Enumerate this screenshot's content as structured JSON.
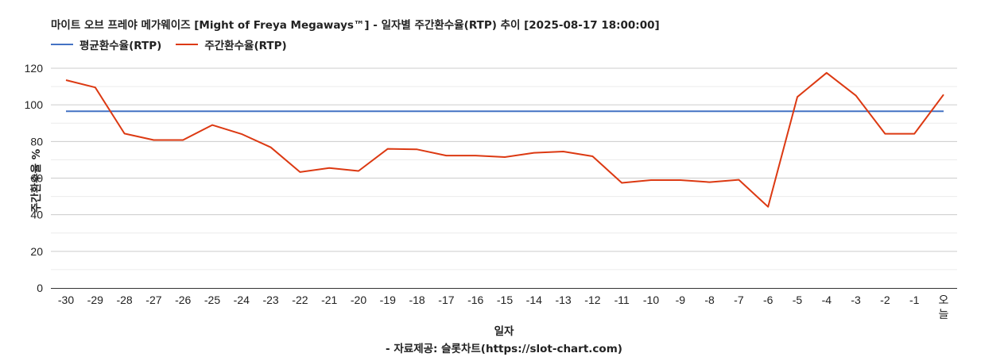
{
  "chart_data": {
    "type": "line",
    "title": "마이트 오브 프레야 메가웨이즈 [Might of Freya Megaways™] - 일자별 주간환수율(RTP) 추이 [2025-08-17 18:00:00]",
    "xlabel": "일자",
    "ylabel": "주간환수율 %",
    "source_note": "- 자료제공: 슬롯차트(https://slot-chart.com)",
    "categories": [
      "-30",
      "-29",
      "-28",
      "-27",
      "-26",
      "-25",
      "-24",
      "-23",
      "-22",
      "-21",
      "-20",
      "-19",
      "-18",
      "-17",
      "-16",
      "-15",
      "-14",
      "-13",
      "-12",
      "-11",
      "-10",
      "-9",
      "-8",
      "-7",
      "-6",
      "-5",
      "-4",
      "-3",
      "-2",
      "-1",
      "오늘"
    ],
    "y_ticks": [
      0,
      20,
      40,
      60,
      80,
      100,
      120
    ],
    "ylim": [
      0,
      120
    ],
    "grid": true,
    "legend_position": "top-left",
    "series": [
      {
        "name": "평균환수율(RTP)",
        "color": "#4472C4",
        "values": [
          96.5,
          96.5,
          96.5,
          96.5,
          96.5,
          96.5,
          96.5,
          96.5,
          96.5,
          96.5,
          96.5,
          96.5,
          96.5,
          96.5,
          96.5,
          96.5,
          96.5,
          96.5,
          96.5,
          96.5,
          96.5,
          96.5,
          96.5,
          96.5,
          96.5,
          96.5,
          96.5,
          96.5,
          96.5,
          96.5,
          96.5
        ]
      },
      {
        "name": "주간환수율(RTP)",
        "color": "#DC3912",
        "values": [
          113.5,
          109.5,
          84.3,
          80.8,
          80.8,
          89.0,
          84.1,
          76.8,
          63.3,
          65.5,
          63.9,
          76.0,
          75.7,
          72.3,
          72.3,
          71.5,
          73.8,
          74.5,
          71.9,
          57.4,
          58.9,
          58.9,
          57.8,
          59.1,
          44.3,
          104.3,
          117.5,
          105.1,
          84.2,
          84.2,
          105.6
        ]
      }
    ]
  }
}
